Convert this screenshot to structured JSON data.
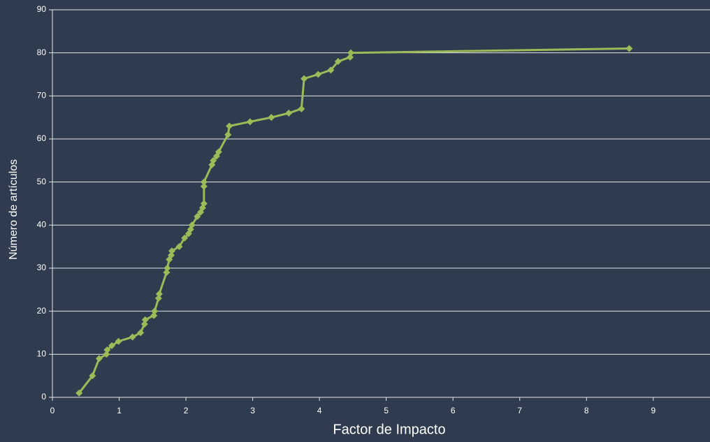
{
  "chart_data": {
    "type": "line",
    "xlabel": "Factor de Impacto",
    "ylabel": "Número de artículos",
    "xlim": [
      0,
      9.85
    ],
    "ylim": [
      0,
      90
    ],
    "xticks": [
      0,
      1,
      2,
      3,
      4,
      5,
      6,
      7,
      8,
      9
    ],
    "yticks": [
      0,
      10,
      20,
      30,
      40,
      50,
      60,
      70,
      80,
      90
    ],
    "grid": true,
    "series": [
      {
        "name": null,
        "color": "#9bbb59",
        "x": [
          0.4,
          0.6,
          0.7,
          0.81,
          0.82,
          0.89,
          0.99,
          1.2,
          1.32,
          1.38,
          1.39,
          1.52,
          1.53,
          1.59,
          1.6,
          1.71,
          1.72,
          1.75,
          1.78,
          1.79,
          1.9,
          1.98,
          2.04,
          2.07,
          2.09,
          2.17,
          2.22,
          2.25,
          2.27,
          2.27,
          2.27,
          2.39,
          2.41,
          2.46,
          2.49,
          2.63,
          2.65,
          2.96,
          3.28,
          3.54,
          3.73,
          3.77,
          3.98,
          4.17,
          4.28,
          4.46,
          4.47,
          8.64
        ],
        "values": [
          1,
          5,
          9,
          10,
          11,
          12,
          13,
          14,
          15,
          17,
          18,
          19,
          20,
          23,
          24,
          29,
          30,
          32,
          33,
          34,
          35,
          37,
          38,
          39,
          40,
          42,
          43,
          44,
          45,
          49,
          50,
          54,
          55,
          56,
          57,
          61,
          63,
          64,
          65,
          66,
          67,
          74,
          75,
          76,
          78,
          79,
          80,
          81
        ]
      }
    ]
  }
}
